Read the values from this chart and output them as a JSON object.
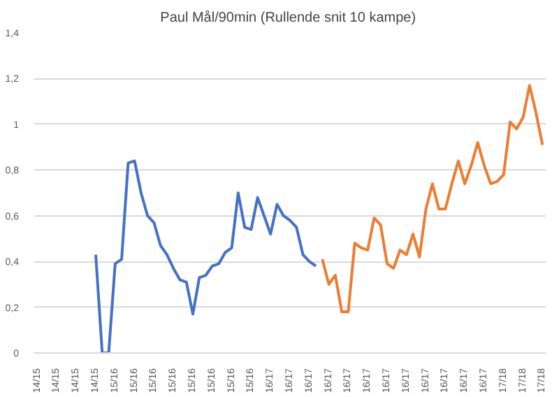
{
  "chart_data": {
    "type": "line",
    "title": "Paul Mål/90min  (Rullende snit 10 kampe)",
    "categories": [
      "14/15",
      null,
      null,
      "14/15",
      null,
      null,
      "14/15",
      null,
      null,
      "14/15",
      null,
      null,
      "15/16",
      null,
      null,
      "15/16",
      null,
      null,
      "15/16",
      null,
      null,
      "15/16",
      null,
      null,
      "15/16",
      null,
      null,
      "15/16",
      null,
      null,
      "15/16",
      null,
      null,
      "15/16",
      null,
      null,
      "16/17",
      null,
      null,
      "16/17",
      null,
      null,
      "16/17",
      null,
      null,
      "16/17",
      null,
      null,
      "16/17",
      null,
      null,
      "16/17",
      null,
      null,
      "16/17",
      null,
      null,
      "16/17",
      null,
      null,
      "16/17",
      null,
      null,
      "16/17",
      null,
      null,
      "16/17",
      null,
      null,
      "16/17",
      null,
      null,
      "17/18",
      null,
      null,
      "17/18",
      null,
      null,
      "17/18"
    ],
    "series": [
      {
        "color": "#4472c4",
        "values": [
          null,
          null,
          null,
          null,
          null,
          null,
          null,
          null,
          null,
          0.43,
          0,
          0,
          0.39,
          0.41,
          0.83,
          0.84,
          0.7,
          0.6,
          0.57,
          0.47,
          0.43,
          0.37,
          0.32,
          0.31,
          0.17,
          0.33,
          0.34,
          0.38,
          0.39,
          0.44,
          0.46,
          0.7,
          0.55,
          0.54,
          0.68,
          0.6,
          0.52,
          0.65,
          0.6,
          0.58,
          0.55,
          0.43,
          0.4,
          0.38,
          null,
          null,
          null,
          null,
          null,
          null,
          null,
          null,
          null,
          null,
          null,
          null,
          null,
          null,
          null,
          null,
          null,
          null,
          null,
          null,
          null,
          null,
          null,
          null,
          null,
          null,
          null,
          null,
          null,
          null,
          null,
          null,
          null,
          null,
          null
        ]
      },
      {
        "color": "#ed7d31",
        "values": [
          null,
          null,
          null,
          null,
          null,
          null,
          null,
          null,
          null,
          null,
          null,
          null,
          null,
          null,
          null,
          null,
          null,
          null,
          null,
          null,
          null,
          null,
          null,
          null,
          null,
          null,
          null,
          null,
          null,
          null,
          null,
          null,
          null,
          null,
          null,
          null,
          null,
          null,
          null,
          null,
          null,
          null,
          null,
          null,
          0.41,
          0.3,
          0.34,
          0.18,
          0.18,
          0.48,
          0.46,
          0.45,
          0.59,
          0.56,
          0.39,
          0.37,
          0.45,
          0.43,
          0.52,
          0.42,
          0.63,
          0.74,
          0.63,
          0.63,
          0.74,
          0.84,
          0.74,
          0.82,
          0.92,
          0.82,
          0.74,
          0.75,
          0.78,
          1.01,
          0.98,
          1.03,
          1.17,
          1.05,
          0.91
        ]
      }
    ],
    "ylim": [
      0,
      1.4
    ],
    "yticks": [
      0,
      {
        "value": 0.2,
        "label": "0,2"
      },
      {
        "value": 0.4,
        "label": "0,4"
      },
      {
        "value": 0.6,
        "label": "0,6"
      },
      {
        "value": 0.8,
        "label": "0,8"
      },
      1,
      {
        "value": 1.2,
        "label": "1,2"
      },
      {
        "value": 1.4,
        "label": "1,4"
      }
    ],
    "grid": "y"
  }
}
